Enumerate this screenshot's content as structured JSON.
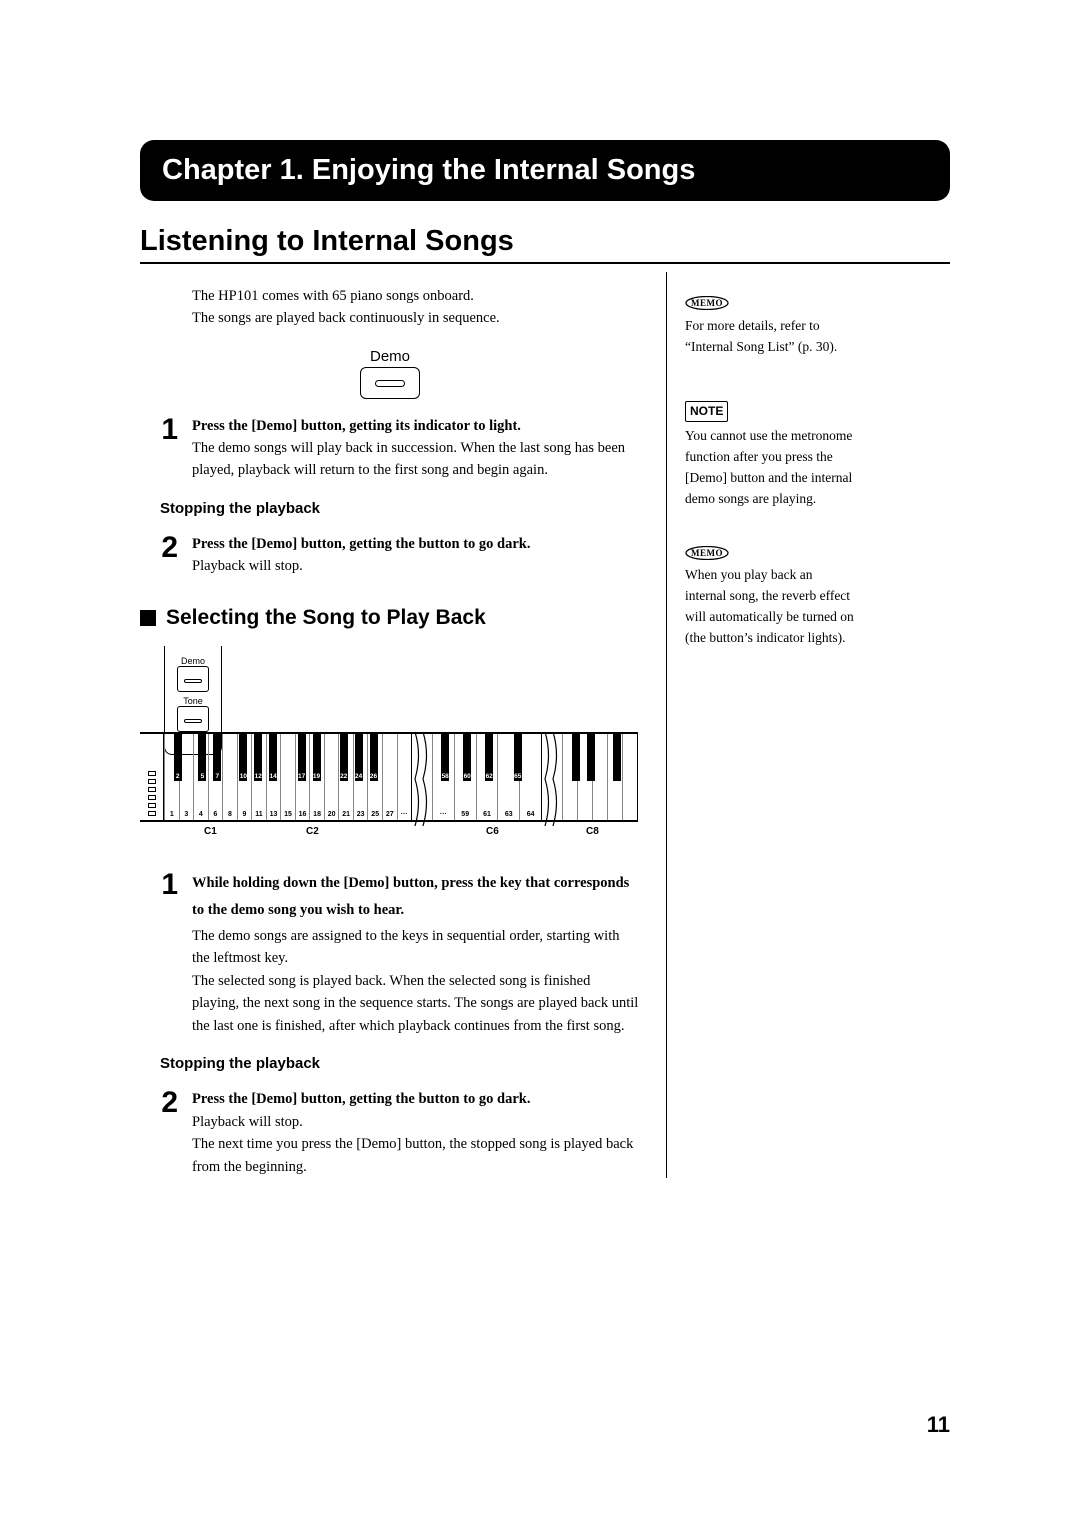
{
  "chapter_title": "Chapter 1. Enjoying the Internal Songs",
  "section_title": "Listening to Internal Songs",
  "intro_line1": "The HP101 comes with 65 piano songs onboard.",
  "intro_line2": "The songs are played back continuously in sequence.",
  "demo_label": "Demo",
  "step1": {
    "num": "1",
    "head": "Press the [Demo] button, getting its indicator to light.",
    "body": "The demo songs will play back in succession. When the last song has been played, playback will return to the first song and begin again."
  },
  "stopping_head": "Stopping the playback",
  "step2": {
    "num": "2",
    "head": "Press the [Demo] button, getting the button to go dark.",
    "body": "Playback will stop."
  },
  "subsection_title": "Selecting the Song to Play Back",
  "panel": {
    "demo": "Demo",
    "tone": "Tone"
  },
  "kbd": {
    "white_seg1": [
      "1",
      "3",
      "4",
      "6",
      "8",
      "9",
      "11",
      "13",
      "15",
      "16",
      "18",
      "20",
      "21",
      "23",
      "25",
      "27",
      "···"
    ],
    "black_seg1": [
      "2",
      "5",
      "7",
      "10",
      "12",
      "14",
      "17",
      "19",
      "22",
      "24",
      "26"
    ],
    "black_seg1_pos": [
      0.055,
      0.155,
      0.215,
      0.32,
      0.38,
      0.44,
      0.555,
      0.615,
      0.725,
      0.785,
      0.845
    ],
    "white_seg2": [
      "···",
      "59",
      "61",
      "63",
      "64"
    ],
    "black_seg2": [
      "58",
      "60",
      "62",
      "65"
    ],
    "black_seg2_pos": [
      0.12,
      0.32,
      0.52,
      0.78
    ],
    "white_seg3_count": 5,
    "oct": {
      "c1": "C1",
      "c2": "C2",
      "c6": "C6",
      "c8": "C8"
    }
  },
  "sel_step1": {
    "num": "1",
    "head": "While holding down the [Demo] button, press the key that corresponds to the demo song you wish to hear.",
    "body1": "The demo songs are assigned to the keys in sequential order, starting with the leftmost key.",
    "body2": "The selected song is played back. When the selected song is finished playing, the next song in the sequence starts. The songs are played back until the last one is finished, after which playback continues from the first song."
  },
  "sel_stopping_head": "Stopping the playback",
  "sel_step2": {
    "num": "2",
    "head": "Press the [Demo] button, getting the button to go dark.",
    "body1": "Playback will stop.",
    "body2": "The next time you press the [Demo] button, the stopped song is played back from the beginning."
  },
  "side": {
    "memo1_label": "MEMO",
    "memo1_text": "For more details, refer to “Internal Song List” (p. 30).",
    "note_label": "NOTE",
    "note_text": "You cannot use the metronome function after you press the [Demo] button and the internal demo songs are playing.",
    "memo2_label": "MEMO",
    "memo2_text": "When you play back an internal song, the reverb effect will automatically be turned on (the button’s indicator lights)."
  },
  "page_number": "11"
}
